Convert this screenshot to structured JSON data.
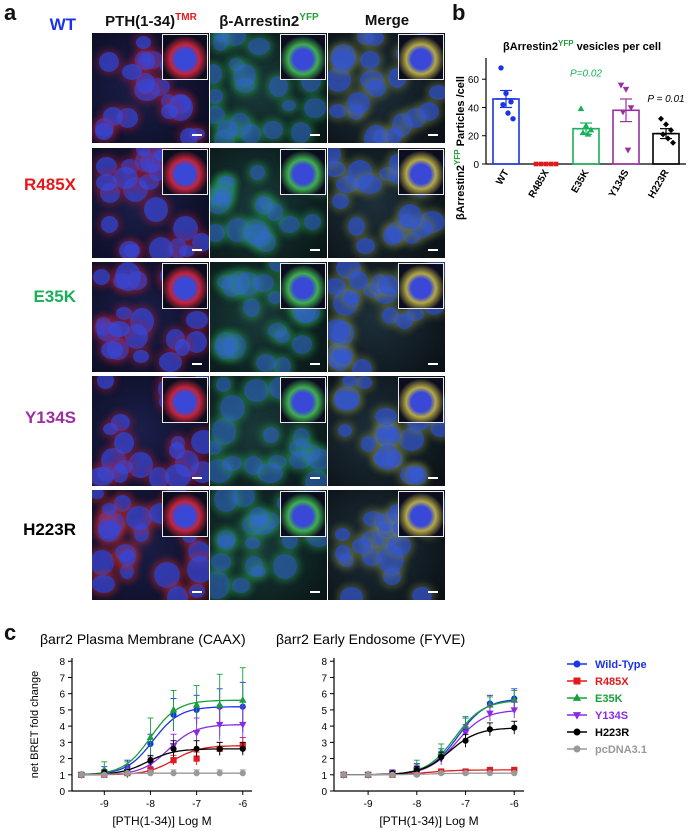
{
  "panels": {
    "a": "a",
    "b": "b",
    "c": "c"
  },
  "microscopy": {
    "columns": [
      {
        "id": "pth",
        "main": "PTH(1-34)",
        "sup": "TMR",
        "sup_color": "#e3191c"
      },
      {
        "id": "arr",
        "main": "β-Arrestin2",
        "sup": "YFP",
        "sup_color": "#22a03a"
      },
      {
        "id": "merge",
        "main": "Merge",
        "sup": "",
        "sup_color": "#000000"
      }
    ],
    "rows": [
      {
        "label": "WT",
        "color": "#1b34e6"
      },
      {
        "label": "R485X",
        "color": "#e3191c"
      },
      {
        "label": "E35K",
        "color": "#18b05a"
      },
      {
        "label": "Y134S",
        "color": "#9b2fa0"
      },
      {
        "label": "H223R",
        "color": "#000000"
      }
    ]
  },
  "chart_data": [
    {
      "type": "bar",
      "title_parts": {
        "a": "βArrestin2",
        "sup": "YFP",
        "b": " vesicles per cell"
      },
      "ylabel_parts": {
        "a": "βArrestin2",
        "sup": "YFP",
        "b": " Particles /cell"
      },
      "categories": [
        "WT",
        "R485X",
        "E35K",
        "Y134S",
        "H223R"
      ],
      "colors": [
        "#1b34e6",
        "#e3191c",
        "#18b05a",
        "#9b2fa0",
        "#000000"
      ],
      "values": [
        46,
        0,
        25,
        38,
        21.5
      ],
      "sem": [
        6,
        0,
        4,
        8,
        3.5
      ],
      "points": [
        [
          68,
          50,
          44,
          42,
          36,
          32
        ],
        [
          0,
          0,
          0,
          0,
          0
        ],
        [
          39,
          27,
          24,
          22,
          21
        ],
        [
          56,
          53,
          40,
          37,
          10
        ],
        [
          32,
          28,
          24,
          21,
          18,
          15
        ]
      ],
      "annotations": [
        {
          "category": "E35K",
          "text": "P=0.02",
          "y": 62,
          "color": "#18b05a"
        },
        {
          "category": "H223R",
          "text": "P = 0.01",
          "y": 44,
          "color": "#000000"
        }
      ],
      "yticks": [
        0,
        20,
        40,
        60
      ],
      "ylim": [
        0,
        75
      ]
    },
    {
      "type": "line",
      "title": "βarr2 Plasma Membrane (CAAX)",
      "xlabel": "[PTH(1-34)] Log M",
      "ylabel": "net BRET fold change",
      "xlim": [
        -9.7,
        -5.8
      ],
      "ylim": [
        0,
        8.2
      ],
      "xticks": [
        -9,
        -8,
        -7,
        -6
      ],
      "yticks": [
        0,
        1,
        2,
        3,
        4,
        5,
        6,
        7,
        8
      ],
      "x": [
        -9.5,
        -9,
        -8.5,
        -8,
        -7.5,
        -7,
        -6.5,
        -6
      ],
      "series": [
        {
          "name": "Wild-Type",
          "color": "#1b34e6",
          "marker": "circle",
          "values": [
            1.0,
            1.2,
            1.5,
            2.9,
            4.7,
            5.0,
            5.2,
            5.2
          ],
          "err": [
            0.1,
            0.3,
            0.4,
            0.6,
            1.0,
            0.9,
            1.1,
            1.5
          ]
        },
        {
          "name": "R485X",
          "color": "#e3191c",
          "marker": "square",
          "values": [
            1.0,
            1.0,
            1.1,
            1.3,
            1.9,
            2.0,
            2.6,
            2.8
          ],
          "err": [
            0.1,
            0.1,
            0.1,
            0.2,
            0.3,
            0.4,
            0.4,
            0.5
          ]
        },
        {
          "name": "E35K",
          "color": "#18a03a",
          "marker": "triangle",
          "values": [
            1.0,
            1.3,
            1.3,
            3.3,
            5.0,
            5.3,
            5.3,
            5.6
          ],
          "err": [
            0.1,
            0.5,
            0.5,
            1.2,
            1.2,
            1.2,
            1.9,
            2.0
          ]
        },
        {
          "name": "Y134S",
          "color": "#8a2be2",
          "marker": "triangle-down",
          "values": [
            1.0,
            1.1,
            1.2,
            1.7,
            2.8,
            3.6,
            4.1,
            4.1
          ],
          "err": [
            0.1,
            0.2,
            0.3,
            0.4,
            0.7,
            0.9,
            1.0,
            1.1
          ]
        },
        {
          "name": "H223R",
          "color": "#000000",
          "marker": "circle",
          "values": [
            1.0,
            1.1,
            1.1,
            1.9,
            2.6,
            2.6,
            2.6,
            2.6
          ],
          "err": [
            0.1,
            0.2,
            0.2,
            0.3,
            0.5,
            0.5,
            0.4,
            0.4
          ]
        },
        {
          "name": "pcDNA3.1",
          "color": "#999999",
          "marker": "circle",
          "values": [
            1.0,
            1.0,
            1.1,
            1.1,
            1.1,
            1.1,
            1.1,
            1.1
          ],
          "err": [
            0.1,
            0.1,
            0.1,
            0.2,
            0.2,
            0.2,
            0.2,
            0.2
          ]
        }
      ]
    },
    {
      "type": "line",
      "title": "βarr2 Early Endosome (FYVE)",
      "xlabel": "[PTH(1-34)] Log M",
      "ylabel": "",
      "xlim": [
        -9.7,
        -5.8
      ],
      "ylim": [
        0,
        8.2
      ],
      "xticks": [
        -9,
        -8,
        -7,
        -6
      ],
      "yticks": [
        0,
        1,
        2,
        3,
        4,
        5,
        6,
        7,
        8
      ],
      "x": [
        -9.5,
        -9,
        -8.5,
        -8,
        -7.5,
        -7,
        -6.5,
        -6
      ],
      "series": [
        {
          "name": "Wild-Type",
          "color": "#1b34e6",
          "marker": "circle",
          "values": [
            1.0,
            1.0,
            1.1,
            1.4,
            2.2,
            3.9,
            5.4,
            5.7
          ],
          "err": [
            0.1,
            0.1,
            0.2,
            0.3,
            0.4,
            0.6,
            0.5,
            0.6
          ]
        },
        {
          "name": "R485X",
          "color": "#e3191c",
          "marker": "square",
          "values": [
            1.0,
            1.0,
            1.0,
            1.1,
            1.2,
            1.2,
            1.3,
            1.3
          ],
          "err": [
            0.1,
            0.1,
            0.1,
            0.1,
            0.1,
            0.1,
            0.1,
            0.1
          ]
        },
        {
          "name": "E35K",
          "color": "#18a03a",
          "marker": "triangle",
          "values": [
            1.0,
            1.0,
            1.1,
            1.5,
            2.4,
            4.0,
            5.3,
            5.6
          ],
          "err": [
            0.1,
            0.1,
            0.2,
            0.4,
            0.5,
            0.6,
            0.5,
            0.6
          ]
        },
        {
          "name": "Y134S",
          "color": "#8a2be2",
          "marker": "triangle-down",
          "values": [
            1.0,
            1.0,
            1.1,
            1.3,
            2.0,
            3.6,
            4.8,
            5.0
          ],
          "err": [
            0.1,
            0.1,
            0.2,
            0.3,
            0.4,
            0.5,
            0.5,
            0.5
          ]
        },
        {
          "name": "H223R",
          "color": "#000000",
          "marker": "circle",
          "values": [
            1.0,
            1.0,
            1.1,
            1.3,
            2.1,
            3.1,
            3.8,
            3.9
          ],
          "err": [
            0.1,
            0.1,
            0.1,
            0.2,
            0.3,
            0.4,
            0.4,
            0.4
          ]
        },
        {
          "name": "pcDNA3.1",
          "color": "#999999",
          "marker": "circle",
          "values": [
            1.0,
            1.0,
            1.0,
            1.0,
            1.1,
            1.1,
            1.1,
            1.1
          ],
          "err": [
            0.1,
            0.1,
            0.1,
            0.1,
            0.1,
            0.1,
            0.1,
            0.1
          ]
        }
      ]
    }
  ],
  "legend": [
    {
      "label": "Wild-Type",
      "color": "#1b34e6",
      "marker": "circle"
    },
    {
      "label": "R485X",
      "color": "#e3191c",
      "marker": "square"
    },
    {
      "label": "E35K",
      "color": "#18a03a",
      "marker": "triangle"
    },
    {
      "label": "Y134S",
      "color": "#8a2be2",
      "marker": "triangle-down"
    },
    {
      "label": "H223R",
      "color": "#000000",
      "marker": "circle"
    },
    {
      "label": "pcDNA3.1",
      "color": "#999999",
      "marker": "circle"
    }
  ]
}
